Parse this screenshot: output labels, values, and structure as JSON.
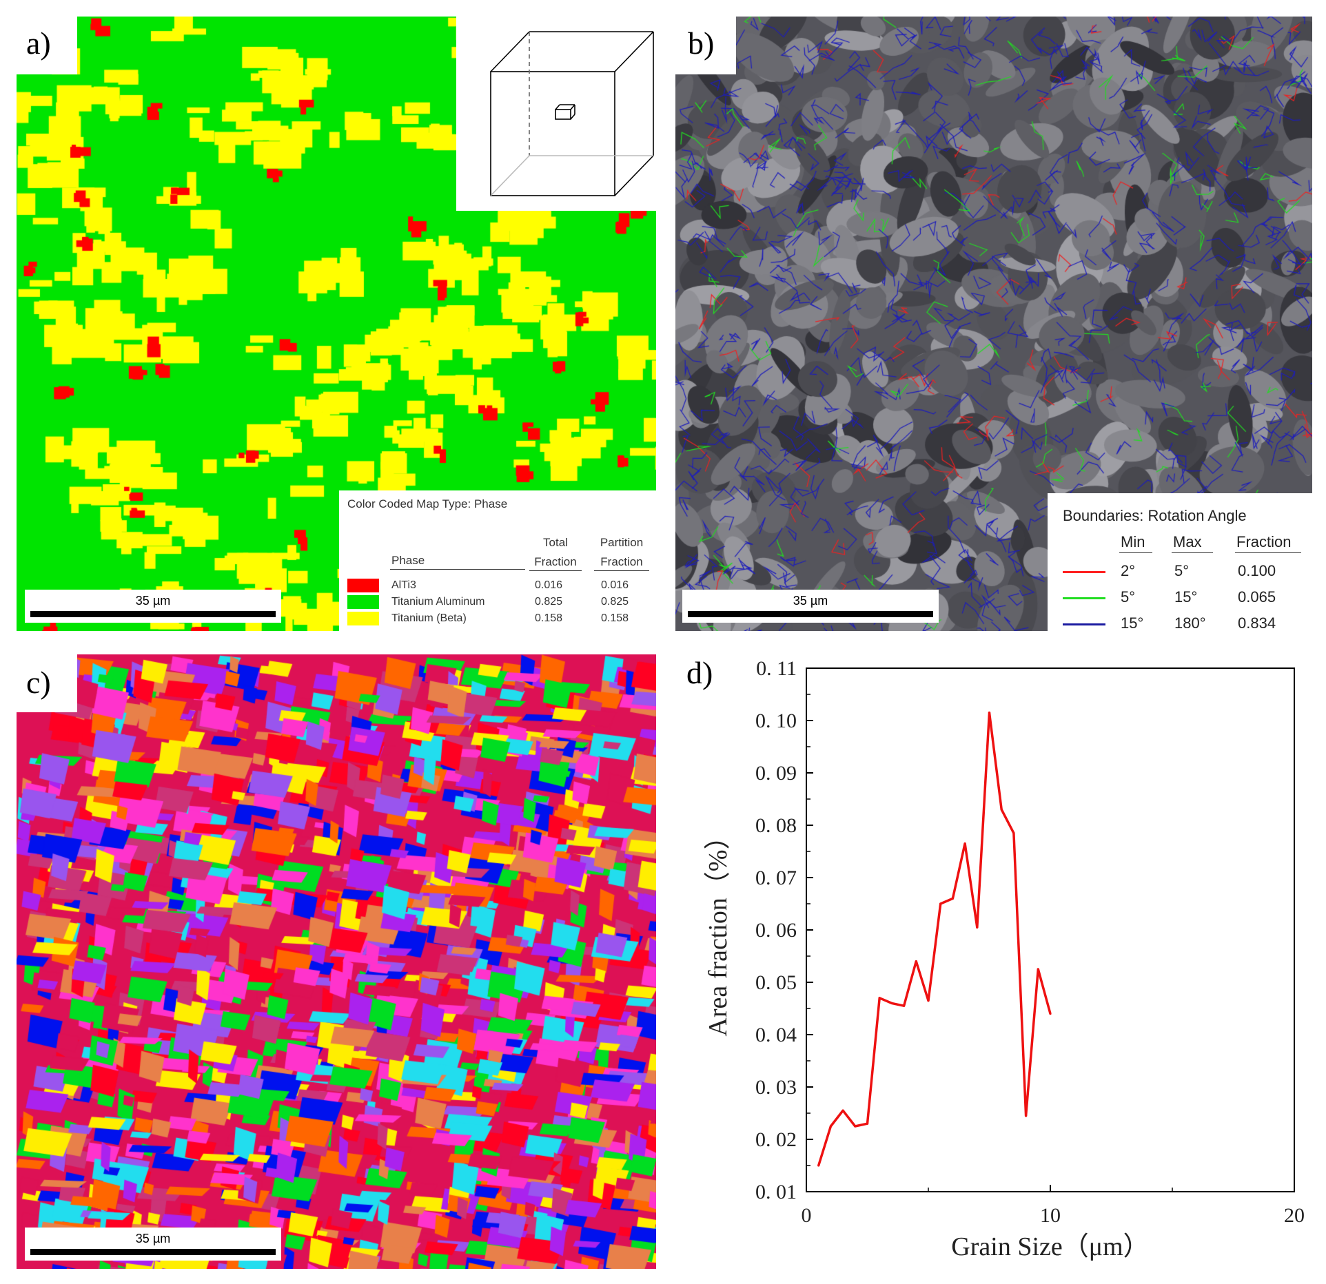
{
  "panel_a": {
    "label": "a)",
    "scale_text": "35 µm",
    "legend_title": "Color Coded Map Type: Phase",
    "col_phase": "Phase",
    "col_total": [
      "Total",
      "Fraction"
    ],
    "col_partition": [
      "Partition",
      "Fraction"
    ],
    "phases": [
      {
        "name": "AlTi3",
        "total": "0.016",
        "partition": "0.016",
        "color": "#ff0000"
      },
      {
        "name": "Titanium Aluminum",
        "total": "0.825",
        "partition": "0.825",
        "color": "#00e400"
      },
      {
        "name": "Titanium (Beta)",
        "total": "0.158",
        "partition": "0.158",
        "color": "#ffff00"
      }
    ]
  },
  "panel_b": {
    "label": "b)",
    "scale_text": "35 µm",
    "legend_title": "Boundaries: Rotation Angle",
    "col_min": "Min",
    "col_max": "Max",
    "col_fraction": "Fraction",
    "rows": [
      {
        "min": "2°",
        "max": "5°",
        "fraction": "0.100",
        "color": "#ff2020"
      },
      {
        "min": "5°",
        "max": "15°",
        "fraction": "0.065",
        "color": "#22dd22"
      },
      {
        "min": "15°",
        "max": "180°",
        "fraction": "0.834",
        "color": "#1a1aa0"
      }
    ]
  },
  "panel_c": {
    "label": "c)",
    "scale_text": "35 µm"
  },
  "panel_d": {
    "label": "d)"
  },
  "chart_data": {
    "type": "line",
    "title": "",
    "xlabel": "Grain Size（μm）",
    "ylabel": "Area fraction（%）",
    "xlim": [
      0,
      20
    ],
    "ylim": [
      0.01,
      0.11
    ],
    "x_ticks": [
      0,
      10,
      20
    ],
    "y_ticks": [
      "0. 01",
      "0. 02",
      "0. 03",
      "0. 04",
      "0. 05",
      "0. 06",
      "0. 07",
      "0. 08",
      "0. 09",
      "0. 10",
      "0. 11"
    ],
    "line_color": "#ee1111",
    "series": [
      {
        "x": [
          0.5,
          1.0,
          1.5,
          2.0,
          2.5,
          3.0,
          3.5,
          4.0,
          4.5,
          5.0,
          5.5,
          6.0,
          6.5,
          7.0,
          7.5,
          8.0,
          8.5,
          9.0,
          9.5,
          10.0,
          10.5
        ],
        "values": [
          0.015,
          0.0225,
          0.0255,
          0.0225,
          0.023,
          0.047,
          0.046,
          0.0455,
          0.054,
          0.0465,
          0.065,
          0.066,
          0.0765,
          0.0605,
          0.1015,
          0.083,
          0.0785,
          0.0245,
          0.0525,
          0.044,
          null
        ]
      }
    ]
  }
}
